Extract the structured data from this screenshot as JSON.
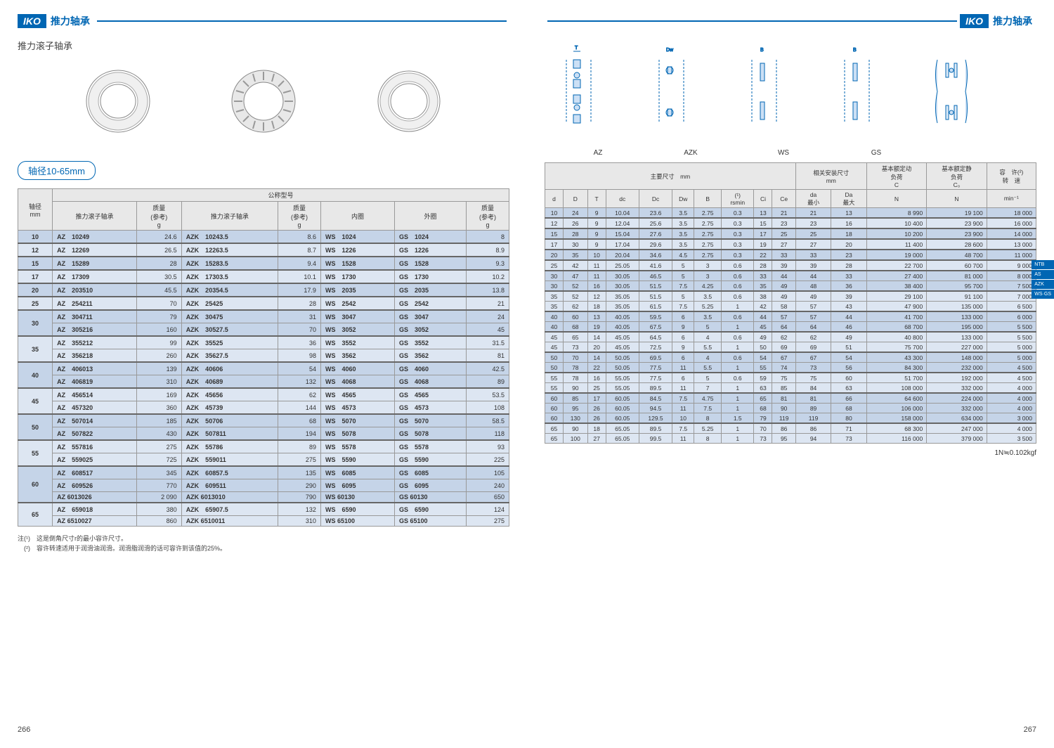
{
  "brand": "IKO",
  "header_title": "推力轴承",
  "subtitle": "推力滚子轴承",
  "size_badge": "轴径10-65mm",
  "footnotes": {
    "note1": "注(¹)　这是倒角尺寸r的最小容许尺寸。",
    "note2": "　(²)　容许转速适用于润滑油润滑。润滑脂润滑的话可容许到该值的25%。"
  },
  "unit_conversion": "1N≒0.102kgf",
  "page_left_num": "266",
  "page_right_num": "267",
  "diagram_labels": [
    "AZ",
    "AZK",
    "WS",
    "GS"
  ],
  "side_tabs": [
    "NTB",
    "AS",
    "AZK",
    "WS·GS"
  ],
  "left_table": {
    "header_group": "公称型号",
    "cols": [
      "轴径\nmm",
      "推力滚子轴承",
      "质量\n(参考)\ng",
      "推力滚子轴承",
      "质量\n(参考)\ng",
      "内圈",
      "外圈",
      "质量\n(参考)\ng"
    ],
    "groups": [
      {
        "shaft": "10",
        "rows": [
          [
            "AZ　10249",
            "24.6",
            "AZK　10243.5",
            "8.6",
            "WS　1024",
            "GS　1024",
            "8"
          ]
        ]
      },
      {
        "shaft": "12",
        "rows": [
          [
            "AZ　12269",
            "26.5",
            "AZK　12263.5",
            "8.7",
            "WS　1226",
            "GS　1226",
            "8.9"
          ]
        ]
      },
      {
        "shaft": "15",
        "rows": [
          [
            "AZ　15289",
            "28",
            "AZK　15283.5",
            "9.4",
            "WS　1528",
            "GS　1528",
            "9.3"
          ]
        ]
      },
      {
        "shaft": "17",
        "rows": [
          [
            "AZ　17309",
            "30.5",
            "AZK　17303.5",
            "10.1",
            "WS　1730",
            "GS　1730",
            "10.2"
          ]
        ]
      },
      {
        "shaft": "20",
        "rows": [
          [
            "AZ　203510",
            "45.5",
            "AZK　20354.5",
            "17.9",
            "WS　2035",
            "GS　2035",
            "13.8"
          ]
        ]
      },
      {
        "shaft": "25",
        "rows": [
          [
            "AZ　254211",
            "70",
            "AZK　25425",
            "28",
            "WS　2542",
            "GS　2542",
            "21"
          ]
        ]
      },
      {
        "shaft": "30",
        "rows": [
          [
            "AZ　304711",
            "79",
            "AZK　30475",
            "31",
            "WS　3047",
            "GS　3047",
            "24"
          ],
          [
            "AZ　305216",
            "160",
            "AZK　30527.5",
            "70",
            "WS　3052",
            "GS　3052",
            "45"
          ]
        ]
      },
      {
        "shaft": "35",
        "rows": [
          [
            "AZ　355212",
            "99",
            "AZK　35525",
            "36",
            "WS　3552",
            "GS　3552",
            "31.5"
          ],
          [
            "AZ　356218",
            "260",
            "AZK　35627.5",
            "98",
            "WS　3562",
            "GS　3562",
            "81"
          ]
        ]
      },
      {
        "shaft": "40",
        "rows": [
          [
            "AZ　406013",
            "139",
            "AZK　40606",
            "54",
            "WS　4060",
            "GS　4060",
            "42.5"
          ],
          [
            "AZ　406819",
            "310",
            "AZK　40689",
            "132",
            "WS　4068",
            "GS　4068",
            "89"
          ]
        ]
      },
      {
        "shaft": "45",
        "rows": [
          [
            "AZ　456514",
            "169",
            "AZK　45656",
            "62",
            "WS　4565",
            "GS　4565",
            "53.5"
          ],
          [
            "AZ　457320",
            "360",
            "AZK　45739",
            "144",
            "WS　4573",
            "GS　4573",
            "108"
          ]
        ]
      },
      {
        "shaft": "50",
        "rows": [
          [
            "AZ　507014",
            "185",
            "AZK　50706",
            "68",
            "WS　5070",
            "GS　5070",
            "58.5"
          ],
          [
            "AZ　507822",
            "430",
            "AZK　507811",
            "194",
            "WS　5078",
            "GS　5078",
            "118"
          ]
        ]
      },
      {
        "shaft": "55",
        "rows": [
          [
            "AZ　557816",
            "275",
            "AZK　55786",
            "89",
            "WS　5578",
            "GS　5578",
            "93"
          ],
          [
            "AZ　559025",
            "725",
            "AZK　559011",
            "275",
            "WS　5590",
            "GS　5590",
            "225"
          ]
        ]
      },
      {
        "shaft": "60",
        "rows": [
          [
            "AZ　608517",
            "345",
            "AZK　60857.5",
            "135",
            "WS　6085",
            "GS　6085",
            "105"
          ],
          [
            "AZ　609526",
            "770",
            "AZK　609511",
            "290",
            "WS　6095",
            "GS　6095",
            "240"
          ],
          [
            "AZ 6013026",
            "2 090",
            "AZK 6013010",
            "790",
            "WS 60130",
            "GS 60130",
            "650"
          ]
        ]
      },
      {
        "shaft": "65",
        "rows": [
          [
            "AZ　659018",
            "380",
            "AZK　65907.5",
            "132",
            "WS　6590",
            "GS　6590",
            "124"
          ],
          [
            "AZ 6510027",
            "860",
            "AZK 6510011",
            "310",
            "WS 65100",
            "GS 65100",
            "275"
          ]
        ]
      }
    ]
  },
  "right_table": {
    "header1": "主要尺寸　mm",
    "header2": "相关安装尺寸\nmm",
    "header3": "基本额定动\n负荷\nC",
    "header4": "基本额定静\n负荷\nC₀",
    "header5": "容　许(²)\n转　速",
    "cols": [
      "d",
      "D",
      "T",
      "dc",
      "Dc",
      "Dw",
      "B",
      "(¹)\nrsmin",
      "Ci",
      "Ce",
      "da\n最小",
      "Da\n最大",
      "N",
      "N",
      "min⁻¹"
    ],
    "groups": [
      {
        "rows": [
          [
            "10",
            "24",
            "9",
            "10.04",
            "23.6",
            "3.5",
            "2.75",
            "0.3",
            "13",
            "21",
            "21",
            "13",
            "8 990",
            "19 100",
            "18 000"
          ]
        ]
      },
      {
        "rows": [
          [
            "12",
            "26",
            "9",
            "12.04",
            "25.6",
            "3.5",
            "2.75",
            "0.3",
            "15",
            "23",
            "23",
            "16",
            "10 400",
            "23 900",
            "16 000"
          ]
        ]
      },
      {
        "rows": [
          [
            "15",
            "28",
            "9",
            "15.04",
            "27.6",
            "3.5",
            "2.75",
            "0.3",
            "17",
            "25",
            "25",
            "18",
            "10 200",
            "23 900",
            "14 000"
          ]
        ]
      },
      {
        "rows": [
          [
            "17",
            "30",
            "9",
            "17.04",
            "29.6",
            "3.5",
            "2.75",
            "0.3",
            "19",
            "27",
            "27",
            "20",
            "11 400",
            "28 600",
            "13 000"
          ]
        ]
      },
      {
        "rows": [
          [
            "20",
            "35",
            "10",
            "20.04",
            "34.6",
            "4.5",
            "2.75",
            "0.3",
            "22",
            "33",
            "33",
            "23",
            "19 000",
            "48 700",
            "11 000"
          ]
        ]
      },
      {
        "rows": [
          [
            "25",
            "42",
            "11",
            "25.05",
            "41.6",
            "5",
            "3",
            "0.6",
            "28",
            "39",
            "39",
            "28",
            "22 700",
            "60 700",
            "9 000"
          ]
        ]
      },
      {
        "rows": [
          [
            "30",
            "47",
            "11",
            "30.05",
            "46.5",
            "5",
            "3",
            "0.6",
            "33",
            "44",
            "44",
            "33",
            "27 400",
            "81 000",
            "8 000"
          ],
          [
            "30",
            "52",
            "16",
            "30.05",
            "51.5",
            "7.5",
            "4.25",
            "0.6",
            "35",
            "49",
            "48",
            "36",
            "38 400",
            "95 700",
            "7 500"
          ]
        ]
      },
      {
        "rows": [
          [
            "35",
            "52",
            "12",
            "35.05",
            "51.5",
            "5",
            "3.5",
            "0.6",
            "38",
            "49",
            "49",
            "39",
            "29 100",
            "91 100",
            "7 000"
          ],
          [
            "35",
            "62",
            "18",
            "35.05",
            "61.5",
            "7.5",
            "5.25",
            "1",
            "42",
            "58",
            "57",
            "43",
            "47 900",
            "135 000",
            "6 500"
          ]
        ]
      },
      {
        "rows": [
          [
            "40",
            "60",
            "13",
            "40.05",
            "59.5",
            "6",
            "3.5",
            "0.6",
            "44",
            "57",
            "57",
            "44",
            "41 700",
            "133 000",
            "6 000"
          ],
          [
            "40",
            "68",
            "19",
            "40.05",
            "67.5",
            "9",
            "5",
            "1",
            "45",
            "64",
            "64",
            "46",
            "68 700",
            "195 000",
            "5 500"
          ]
        ]
      },
      {
        "rows": [
          [
            "45",
            "65",
            "14",
            "45.05",
            "64.5",
            "6",
            "4",
            "0.6",
            "49",
            "62",
            "62",
            "49",
            "40 800",
            "133 000",
            "5 500"
          ],
          [
            "45",
            "73",
            "20",
            "45.05",
            "72.5",
            "9",
            "5.5",
            "1",
            "50",
            "69",
            "69",
            "51",
            "75 700",
            "227 000",
            "5 000"
          ]
        ]
      },
      {
        "rows": [
          [
            "50",
            "70",
            "14",
            "50.05",
            "69.5",
            "6",
            "4",
            "0.6",
            "54",
            "67",
            "67",
            "54",
            "43 300",
            "148 000",
            "5 000"
          ],
          [
            "50",
            "78",
            "22",
            "50.05",
            "77.5",
            "11",
            "5.5",
            "1",
            "55",
            "74",
            "73",
            "56",
            "84 300",
            "232 000",
            "4 500"
          ]
        ]
      },
      {
        "rows": [
          [
            "55",
            "78",
            "16",
            "55.05",
            "77.5",
            "6",
            "5",
            "0.6",
            "59",
            "75",
            "75",
            "60",
            "51 700",
            "192 000",
            "4 500"
          ],
          [
            "55",
            "90",
            "25",
            "55.05",
            "89.5",
            "11",
            "7",
            "1",
            "63",
            "85",
            "84",
            "63",
            "108 000",
            "332 000",
            "4 000"
          ]
        ]
      },
      {
        "rows": [
          [
            "60",
            "85",
            "17",
            "60.05",
            "84.5",
            "7.5",
            "4.75",
            "1",
            "65",
            "81",
            "81",
            "66",
            "64 600",
            "224 000",
            "4 000"
          ],
          [
            "60",
            "95",
            "26",
            "60.05",
            "94.5",
            "11",
            "7.5",
            "1",
            "68",
            "90",
            "89",
            "68",
            "106 000",
            "332 000",
            "4 000"
          ],
          [
            "60",
            "130",
            "26",
            "60.05",
            "129.5",
            "10",
            "8",
            "1.5",
            "79",
            "119",
            "119",
            "80",
            "158 000",
            "634 000",
            "3 000"
          ]
        ]
      },
      {
        "rows": [
          [
            "65",
            "90",
            "18",
            "65.05",
            "89.5",
            "7.5",
            "5.25",
            "1",
            "70",
            "86",
            "86",
            "71",
            "68 300",
            "247 000",
            "4 000"
          ],
          [
            "65",
            "100",
            "27",
            "65.05",
            "99.5",
            "11",
            "8",
            "1",
            "73",
            "95",
            "94",
            "73",
            "116 000",
            "379 000",
            "3 500"
          ]
        ]
      }
    ]
  }
}
